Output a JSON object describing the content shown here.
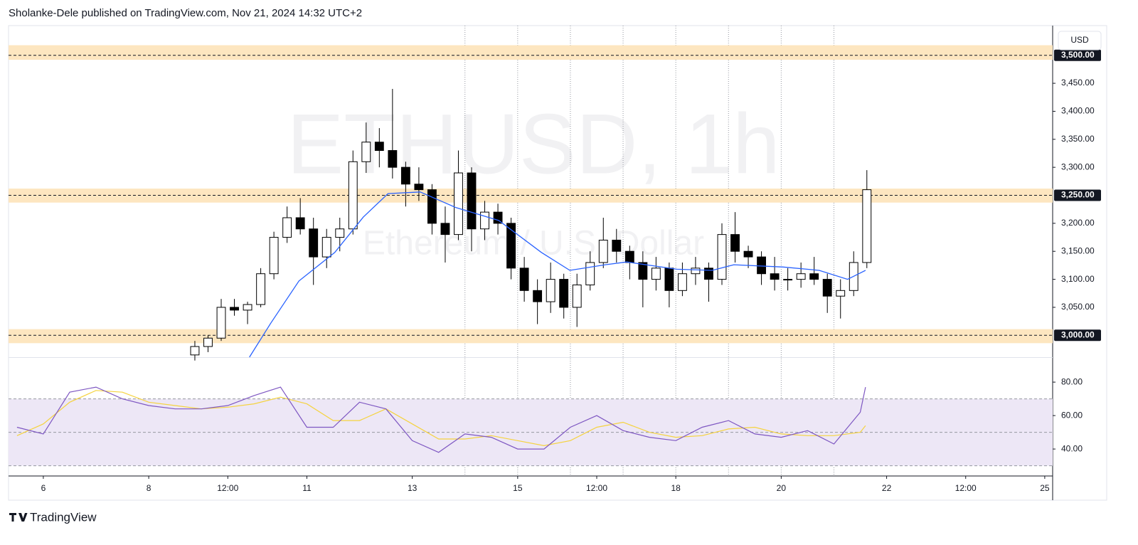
{
  "header": {
    "text": "Sholanke-Dele published on TradingView.com, Nov 21, 2024 14:32 UTC+2"
  },
  "footer": {
    "logo": "TradingView"
  },
  "chart_data": {
    "type": "candlestick",
    "watermark": {
      "symbol": "ETHUSD, 1h",
      "name": "Ethereum / U.S. Dollar"
    },
    "currency": "USD",
    "color_up": "#ffffff",
    "color_down": "#000000",
    "border_color": "#000000",
    "xlim": [
      5.34,
      25.15
    ],
    "xticks": [
      6,
      8,
      {
        "value": 9.5,
        "label": "12:00"
      },
      11,
      13,
      15,
      {
        "value": 16.5,
        "label": "12:00"
      },
      18,
      20,
      22,
      {
        "value": 23.5,
        "label": "12:00"
      },
      25
    ],
    "vlines": [
      14,
      15,
      16,
      17,
      18,
      19,
      20,
      21
    ],
    "ylim": [
      2961,
      3553
    ],
    "yticks": [
      {
        "value": 3050,
        "label": "3,050.00"
      },
      {
        "value": 3100,
        "label": "3,100.00"
      },
      {
        "value": 3150,
        "label": "3,150.00"
      },
      {
        "value": 3200,
        "label": "3,200.00"
      },
      {
        "value": 3300,
        "label": "3,300.00"
      },
      {
        "value": 3350,
        "label": "3,350.00"
      },
      {
        "value": 3400,
        "label": "3,400.00"
      },
      {
        "value": 3450,
        "label": "3,450.00"
      }
    ],
    "zones": [
      {
        "value": 3500,
        "label": "3,500.00",
        "low": 3492,
        "high": 3518
      },
      {
        "value": 3250,
        "label": "3,250.00",
        "low": 3237,
        "high": 3262
      },
      {
        "value": 3000,
        "label": "3,000.00",
        "low": 2986,
        "high": 3011
      }
    ],
    "zone_color": "#fde6c0",
    "x": [
      8.75,
      9.0,
      9.25,
      9.5,
      9.75,
      10.0,
      10.25,
      10.5,
      10.75,
      11.0,
      11.25,
      11.5,
      11.75,
      12.0,
      12.25,
      12.5,
      12.75,
      13.0,
      13.25,
      13.5,
      13.75,
      14.0,
      14.25,
      14.5,
      14.75,
      15.0,
      15.25,
      15.5,
      15.75,
      16.0,
      16.25,
      16.5,
      16.75,
      17.0,
      17.25,
      17.5,
      17.75,
      18.0,
      18.25,
      18.5,
      18.75,
      19.0,
      19.25,
      19.5,
      19.75,
      20.0,
      20.25,
      20.5,
      20.75,
      21.0,
      21.25,
      21.5
    ],
    "open": [
      2965,
      2980,
      2995,
      3050,
      3045,
      3055,
      3110,
      3175,
      3210,
      3190,
      3140,
      3175,
      3190,
      3310,
      3345,
      3330,
      3300,
      3270,
      3260,
      3200,
      3180,
      3290,
      3190,
      3220,
      3200,
      3120,
      3080,
      3060,
      3100,
      3050,
      3090,
      3130,
      3170,
      3150,
      3130,
      3100,
      3120,
      3080,
      3110,
      3120,
      3100,
      3180,
      3150,
      3140,
      3110,
      3100,
      3100,
      3110,
      3100,
      3070,
      3080,
      3130
    ],
    "high": [
      2990,
      3000,
      3065,
      3065,
      3060,
      3120,
      3185,
      3230,
      3245,
      3210,
      3190,
      3210,
      3330,
      3380,
      3370,
      3440,
      3310,
      3300,
      3270,
      3230,
      3330,
      3300,
      3240,
      3235,
      3210,
      3140,
      3100,
      3130,
      3110,
      3110,
      3150,
      3210,
      3190,
      3160,
      3150,
      3140,
      3130,
      3130,
      3140,
      3130,
      3200,
      3220,
      3160,
      3150,
      3140,
      3120,
      3130,
      3140,
      3110,
      3100,
      3150,
      3295
    ],
    "low": [
      2955,
      2970,
      2990,
      3035,
      3020,
      3050,
      3100,
      3165,
      3180,
      3090,
      3120,
      3150,
      3180,
      3290,
      3300,
      3280,
      3230,
      3240,
      3180,
      3130,
      3170,
      3150,
      3170,
      3180,
      3100,
      3060,
      3020,
      3040,
      3030,
      3015,
      3080,
      3120,
      3130,
      3100,
      3050,
      3080,
      3050,
      3070,
      3090,
      3060,
      3090,
      3130,
      3120,
      3090,
      3080,
      3080,
      3085,
      3090,
      3040,
      3030,
      3070,
      3120
    ],
    "close": [
      2980,
      2995,
      3050,
      3045,
      3055,
      3110,
      3175,
      3210,
      3190,
      3140,
      3175,
      3190,
      3310,
      3345,
      3330,
      3300,
      3270,
      3260,
      3200,
      3180,
      3290,
      3190,
      3220,
      3200,
      3120,
      3080,
      3060,
      3100,
      3050,
      3090,
      3130,
      3170,
      3150,
      3130,
      3100,
      3120,
      3080,
      3110,
      3120,
      3100,
      3180,
      3150,
      3140,
      3110,
      3100,
      3100,
      3110,
      3100,
      3070,
      3080,
      3130,
      3260
    ],
    "ma": {
      "color": "#2962ff",
      "x": [
        9.91,
        10.31,
        10.85,
        11.53,
        12.07,
        12.54,
        13.15,
        13.83,
        14.64,
        15.45,
        15.99,
        16.66,
        17.07,
        18.02,
        18.69,
        19.1,
        20.04,
        20.72,
        21.26,
        21.6
      ],
      "values": [
        2961,
        3021,
        3097,
        3148,
        3211,
        3253,
        3256,
        3228,
        3205,
        3148,
        3116,
        3126,
        3131,
        3118,
        3116,
        3126,
        3122,
        3116,
        3100,
        3116
      ]
    },
    "rsi": {
      "type": "line",
      "color": "#7e57c2",
      "ylim": [
        24.3,
        94.5
      ],
      "yticks": [
        {
          "value": 80,
          "label": "80.00"
        },
        {
          "value": 60,
          "label": "60.00"
        },
        {
          "value": 40,
          "label": "40.00"
        }
      ],
      "band": [
        30,
        70
      ],
      "band_color": "#ede7f6",
      "levels": [
        30,
        50,
        70
      ],
      "x": [
        5.5,
        6.0,
        6.5,
        7.0,
        7.5,
        8.0,
        8.5,
        9.0,
        9.5,
        10.0,
        10.5,
        11.0,
        11.5,
        12.0,
        12.5,
        13.0,
        13.5,
        14.0,
        14.5,
        15.0,
        15.5,
        16.0,
        16.5,
        17.0,
        17.5,
        18.0,
        18.5,
        19.0,
        19.5,
        20.0,
        20.5,
        21.0,
        21.5,
        21.6
      ],
      "values": [
        53,
        49,
        74,
        77,
        70,
        66,
        64,
        64,
        66,
        72,
        77,
        53,
        53,
        68,
        64,
        45,
        38,
        49,
        47,
        40,
        40,
        53,
        60,
        51,
        47,
        45,
        53,
        57,
        49,
        47,
        51,
        43,
        62,
        77
      ],
      "ma": {
        "color": "#f5d33f",
        "values": [
          48,
          55,
          68,
          75,
          74,
          68,
          66,
          64,
          65,
          67,
          71,
          67,
          57,
          57,
          64,
          55,
          46,
          46,
          48,
          45,
          42,
          45,
          53,
          56,
          50,
          47,
          48,
          52,
          53,
          49,
          48,
          48,
          50,
          54
        ]
      }
    }
  }
}
